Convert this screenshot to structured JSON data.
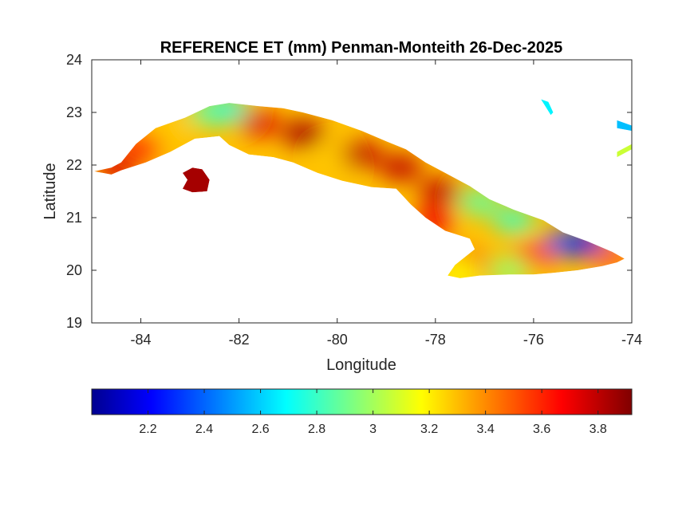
{
  "chart_data": {
    "type": "heatmap",
    "title": "REFERENCE ET (mm) Penman-Monteith 26-Dec-2025",
    "xlabel": "Longitude",
    "ylabel": "Latitude",
    "xlim": [
      -85,
      -74
    ],
    "ylim": [
      19,
      24
    ],
    "x_ticks": [
      "-84",
      "-82",
      "-80",
      "-78",
      "-76",
      "-74"
    ],
    "x_tick_values": [
      -84,
      -82,
      -80,
      -78,
      -76,
      -74
    ],
    "y_ticks": [
      "19",
      "20",
      "21",
      "22",
      "23",
      "24"
    ],
    "y_tick_values": [
      19,
      20,
      21,
      22,
      23,
      24
    ],
    "grid": false,
    "colorbar": {
      "orientation": "horizontal",
      "placement": "bottom",
      "colormap": "jet",
      "range": [
        2.0,
        3.92
      ],
      "ticks": [
        "2.2",
        "2.4",
        "2.6",
        "2.8",
        "3",
        "3.2",
        "3.4",
        "3.6",
        "3.8"
      ],
      "tick_values": [
        2.2,
        2.4,
        2.6,
        2.8,
        3.0,
        3.2,
        3.4,
        3.6,
        3.8
      ]
    },
    "regions": [
      {
        "name": "main-island",
        "outline": [
          [
            -84.95,
            21.88
          ],
          [
            -84.6,
            21.95
          ],
          [
            -84.4,
            22.05
          ],
          [
            -84.1,
            22.4
          ],
          [
            -83.7,
            22.7
          ],
          [
            -83.1,
            22.9
          ],
          [
            -82.6,
            23.12
          ],
          [
            -82.2,
            23.18
          ],
          [
            -81.6,
            23.12
          ],
          [
            -81.1,
            23.08
          ],
          [
            -80.7,
            23.0
          ],
          [
            -80.1,
            22.85
          ],
          [
            -79.5,
            22.65
          ],
          [
            -79.0,
            22.45
          ],
          [
            -78.6,
            22.3
          ],
          [
            -78.2,
            22.05
          ],
          [
            -77.8,
            21.85
          ],
          [
            -77.3,
            21.6
          ],
          [
            -76.9,
            21.35
          ],
          [
            -76.4,
            21.15
          ],
          [
            -75.8,
            20.95
          ],
          [
            -75.4,
            20.72
          ],
          [
            -74.9,
            20.55
          ],
          [
            -74.4,
            20.35
          ],
          [
            -74.15,
            20.22
          ],
          [
            -74.3,
            20.15
          ],
          [
            -74.6,
            20.08
          ],
          [
            -75.1,
            20.0
          ],
          [
            -75.6,
            19.95
          ],
          [
            -76.0,
            19.92
          ],
          [
            -76.5,
            19.92
          ],
          [
            -77.1,
            19.9
          ],
          [
            -77.5,
            19.85
          ],
          [
            -77.75,
            19.9
          ],
          [
            -77.6,
            20.1
          ],
          [
            -77.2,
            20.4
          ],
          [
            -77.3,
            20.6
          ],
          [
            -77.8,
            20.75
          ],
          [
            -78.2,
            21.0
          ],
          [
            -78.5,
            21.25
          ],
          [
            -78.8,
            21.55
          ],
          [
            -79.3,
            21.58
          ],
          [
            -79.9,
            21.7
          ],
          [
            -80.4,
            21.85
          ],
          [
            -80.9,
            22.05
          ],
          [
            -81.3,
            22.15
          ],
          [
            -81.8,
            22.2
          ],
          [
            -82.2,
            22.38
          ],
          [
            -82.4,
            22.55
          ],
          [
            -82.9,
            22.5
          ],
          [
            -83.4,
            22.25
          ],
          [
            -83.9,
            22.05
          ],
          [
            -84.4,
            21.9
          ],
          [
            -84.6,
            21.82
          ],
          [
            -84.95,
            21.88
          ]
        ],
        "values": [
          {
            "lon": -84.5,
            "lat": 21.95,
            "et": 3.75
          },
          {
            "lon": -84.0,
            "lat": 22.35,
            "et": 3.6
          },
          {
            "lon": -83.4,
            "lat": 22.7,
            "et": 3.3
          },
          {
            "lon": -82.6,
            "lat": 23.0,
            "et": 2.9
          },
          {
            "lon": -82.2,
            "lat": 23.05,
            "et": 2.8
          },
          {
            "lon": -81.6,
            "lat": 22.8,
            "et": 3.75
          },
          {
            "lon": -80.7,
            "lat": 22.6,
            "et": 3.85
          },
          {
            "lon": -80.0,
            "lat": 22.1,
            "et": 3.3
          },
          {
            "lon": -79.5,
            "lat": 22.2,
            "et": 3.8
          },
          {
            "lon": -78.7,
            "lat": 21.95,
            "et": 3.8
          },
          {
            "lon": -77.9,
            "lat": 21.5,
            "et": 3.8
          },
          {
            "lon": -77.1,
            "lat": 21.3,
            "et": 2.9
          },
          {
            "lon": -76.4,
            "lat": 20.95,
            "et": 2.85
          },
          {
            "lon": -75.4,
            "lat": 20.5,
            "et": 2.4
          },
          {
            "lon": -74.9,
            "lat": 20.5,
            "et": 2.2
          },
          {
            "lon": -74.4,
            "lat": 20.25,
            "et": 3.5
          },
          {
            "lon": -76.0,
            "lat": 20.3,
            "et": 3.55
          },
          {
            "lon": -77.3,
            "lat": 20.1,
            "et": 3.7
          },
          {
            "lon": -77.5,
            "lat": 19.95,
            "et": 3.2
          },
          {
            "lon": -76.5,
            "lat": 20.0,
            "et": 3.0
          },
          {
            "lon": -78.0,
            "lat": 20.95,
            "et": 3.7
          }
        ]
      },
      {
        "name": "isla-de-la-juventud",
        "outline": [
          [
            -82.95,
            21.95
          ],
          [
            -82.75,
            21.92
          ],
          [
            -82.6,
            21.72
          ],
          [
            -82.65,
            21.5
          ],
          [
            -82.95,
            21.48
          ],
          [
            -83.15,
            21.55
          ],
          [
            -83.05,
            21.72
          ],
          [
            -83.15,
            21.85
          ],
          [
            -82.95,
            21.95
          ]
        ],
        "values": [
          {
            "lon": -82.85,
            "lat": 21.7,
            "et": 3.85
          }
        ]
      },
      {
        "name": "eastern-islet-1",
        "outline": [
          [
            -75.85,
            23.25
          ],
          [
            -75.7,
            23.2
          ],
          [
            -75.6,
            23.0
          ],
          [
            -75.65,
            22.95
          ],
          [
            -75.75,
            23.1
          ],
          [
            -75.85,
            23.25
          ]
        ],
        "values": [
          {
            "lon": -75.7,
            "lat": 23.1,
            "et": 2.7
          }
        ]
      },
      {
        "name": "eastern-islet-2",
        "outline": [
          [
            -74.3,
            22.85
          ],
          [
            -74.0,
            22.75
          ],
          [
            -74.0,
            22.65
          ],
          [
            -74.3,
            22.7
          ],
          [
            -74.3,
            22.85
          ]
        ],
        "values": [
          {
            "lon": -74.15,
            "lat": 22.75,
            "et": 2.6
          }
        ]
      },
      {
        "name": "eastern-islet-3",
        "outline": [
          [
            -74.3,
            22.25
          ],
          [
            -74.0,
            22.4
          ],
          [
            -74.0,
            22.3
          ],
          [
            -74.3,
            22.15
          ],
          [
            -74.3,
            22.25
          ]
        ],
        "values": [
          {
            "lon": -74.15,
            "lat": 22.28,
            "et": 3.1
          }
        ]
      }
    ]
  }
}
